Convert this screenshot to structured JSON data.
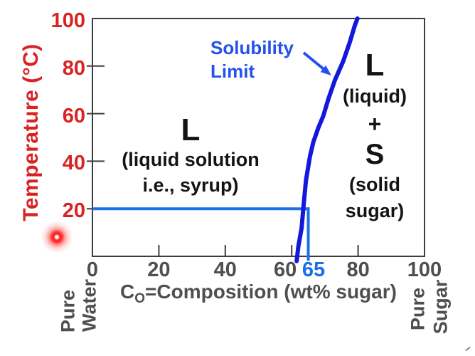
{
  "colors": {
    "red": "#d92222",
    "gray": "#4f4f4f",
    "black": "#141414",
    "axis": "#3d3d3d",
    "curve_blue": "#1418dd",
    "guide_blue": "#1b70e8",
    "ann_blue": "#2451ee"
  },
  "chart_data": {
    "type": "line",
    "ylabel": "Temperature (°C)",
    "xlabel": {
      "prefix": "C",
      "sub": "O",
      "rest": "=Composition (wt% sugar)"
    },
    "x_range": [
      0,
      100
    ],
    "y_range": [
      0,
      100
    ],
    "x_ticks": [
      0,
      20,
      40,
      60,
      80,
      100
    ],
    "x_tick_marks": [
      20,
      40,
      60,
      80
    ],
    "y_ticks": [
      20,
      40,
      60,
      80,
      100
    ],
    "y_tick_marks": [
      20,
      40,
      60,
      80
    ],
    "grid": false,
    "legend": false,
    "series": [
      {
        "name": "Solubility Limit",
        "points": [
          [
            61.5,
            -2
          ],
          [
            62,
            4
          ],
          [
            63,
            12
          ],
          [
            63.5,
            20
          ],
          [
            64.3,
            32
          ],
          [
            65.5,
            42
          ],
          [
            66.5,
            48
          ],
          [
            68,
            54
          ],
          [
            69.5,
            59
          ],
          [
            71,
            66
          ],
          [
            73,
            74
          ],
          [
            75.5,
            82
          ],
          [
            77.5,
            90
          ],
          [
            79,
            97
          ],
          [
            79.8,
            100
          ]
        ]
      }
    ],
    "guides": {
      "temperature": 20,
      "composition": 65,
      "composition_label": "65"
    },
    "annotations": {
      "solubility_label": {
        "line1": "Solubility",
        "line2": "Limit"
      },
      "left_region": {
        "symbol": "L",
        "line1": "(liquid solution",
        "line2": "i.e., syrup)"
      },
      "right_region": {
        "symbol_liquid": "L",
        "line1": "(liquid)",
        "plus": "+",
        "symbol_solid": "S",
        "line2": "(solid",
        "line3": "sugar)"
      },
      "left_edge": {
        "line1": "Pure",
        "line2": "Water"
      },
      "right_edge": {
        "line1": "Pure",
        "line2": "Sugar"
      }
    }
  }
}
